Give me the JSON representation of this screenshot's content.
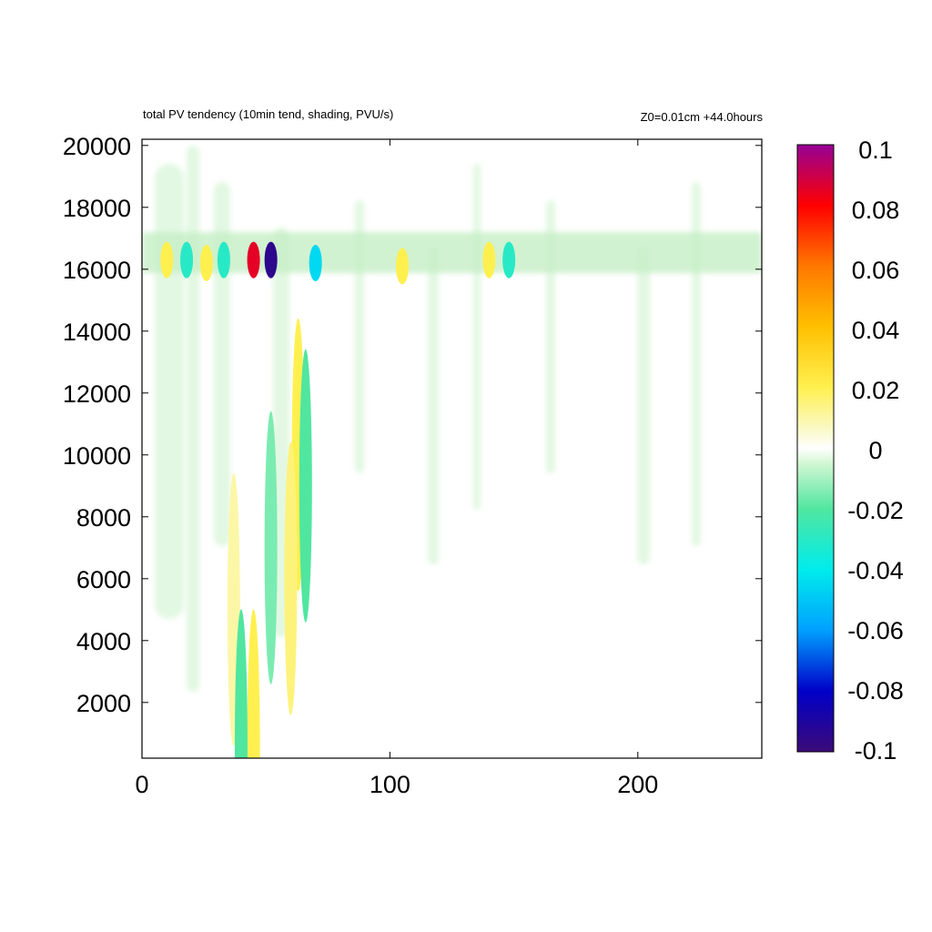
{
  "header": {
    "title": "total PV tendency (10min tend, shading, PVU/s)",
    "subtitle": "Z0=0.01cm   +44.0hours"
  },
  "chart_data": {
    "type": "heatmap",
    "title": "total PV tendency (10min tend, shading, PVU/s)",
    "subtitle": "Z0=0.01cm   +44.0hours",
    "xlim": [
      0,
      250
    ],
    "ylim": [
      200,
      20200
    ],
    "x_ticks": [
      0,
      100,
      200
    ],
    "y_ticks": [
      2000,
      4000,
      6000,
      8000,
      10000,
      12000,
      14000,
      16000,
      18000,
      20000
    ],
    "colorbar": {
      "range": [
        -0.1,
        0.1
      ],
      "ticks": [
        "0.1",
        "0.08",
        "0.06",
        "0.04",
        "0.02",
        "0",
        "-0.02",
        "-0.04",
        "-0.06",
        "-0.08",
        "-0.1"
      ],
      "stops": [
        {
          "v": -0.1,
          "color": "#3c0a78"
        },
        {
          "v": -0.08,
          "color": "#0000c8"
        },
        {
          "v": -0.06,
          "color": "#00a0ff"
        },
        {
          "v": -0.04,
          "color": "#00ecec"
        },
        {
          "v": -0.02,
          "color": "#50e6a0"
        },
        {
          "v": -0.005,
          "color": "#d2f7d2"
        },
        {
          "v": 0,
          "color": "#ffffff"
        },
        {
          "v": 0.005,
          "color": "#fafad2"
        },
        {
          "v": 0.02,
          "color": "#fff050"
        },
        {
          "v": 0.04,
          "color": "#ffc000"
        },
        {
          "v": 0.06,
          "color": "#ff7800"
        },
        {
          "v": 0.08,
          "color": "#ff0000"
        },
        {
          "v": 0.1,
          "color": "#960096"
        }
      ]
    },
    "features": [
      {
        "x": 45,
        "y": 16300,
        "value": 0.085
      },
      {
        "x": 52,
        "y": 16300,
        "value": -0.095
      },
      {
        "x": 70,
        "y": 16200,
        "value": -0.045
      },
      {
        "x": 26,
        "y": 16200,
        "value": 0.02
      },
      {
        "x": 10,
        "y": 16300,
        "value": 0.02
      },
      {
        "x": 18,
        "y": 16300,
        "value": -0.03
      },
      {
        "x": 33,
        "y": 16300,
        "value": -0.03
      },
      {
        "x": 105,
        "y": 16100,
        "value": 0.02
      },
      {
        "x": 140,
        "y": 16300,
        "value": 0.02
      },
      {
        "x": 148,
        "y": 16300,
        "value": -0.03
      },
      {
        "x": 63,
        "y": 10000,
        "value": 0.02
      },
      {
        "x": 60,
        "y": 6000,
        "value": 0.015
      },
      {
        "x": 66,
        "y": 9000,
        "value": -0.02
      },
      {
        "x": 52,
        "y": 7000,
        "value": -0.015
      },
      {
        "x": 37,
        "y": 5000,
        "value": 0.01
      },
      {
        "x": 45,
        "y": 600,
        "value": 0.02
      },
      {
        "x": 40,
        "y": 600,
        "value": -0.02
      }
    ]
  }
}
